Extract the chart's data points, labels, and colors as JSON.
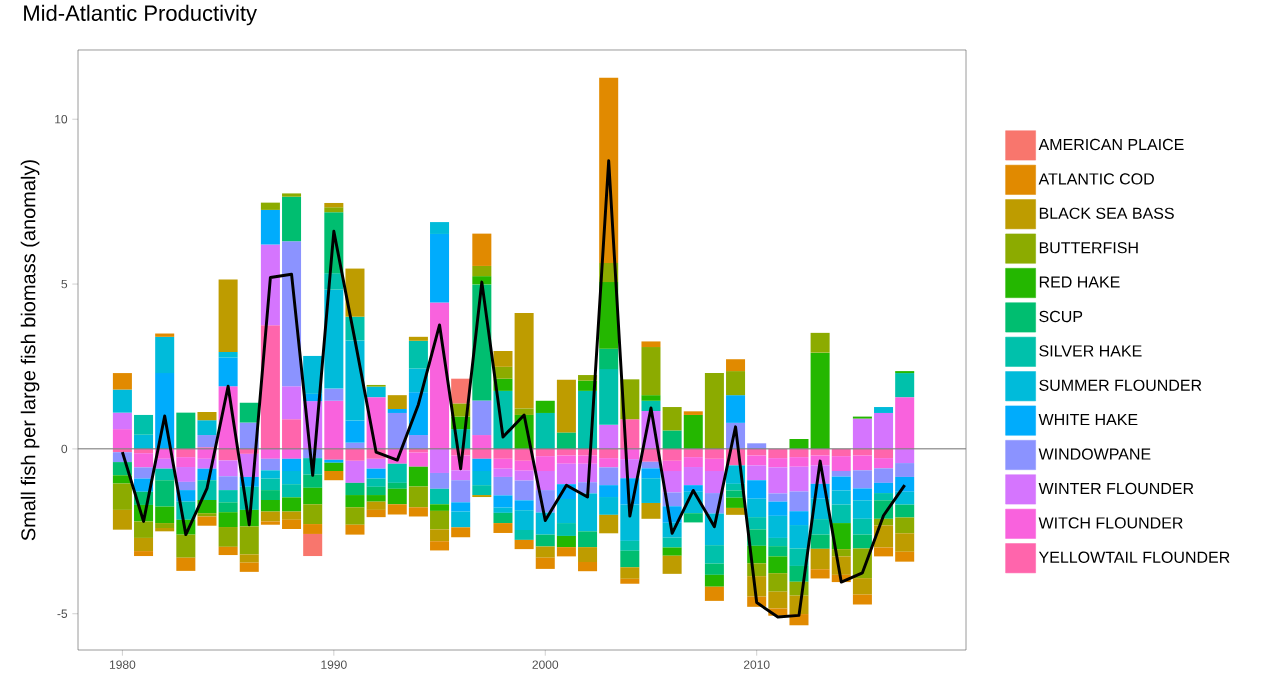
{
  "chart_data": {
    "type": "bar",
    "title": "Mid-Atlantic Productivity",
    "ylabel": "Small fish per large fish biomass (anomaly)",
    "x": [
      1980,
      1981,
      1982,
      1983,
      1984,
      1985,
      1986,
      1987,
      1988,
      1989,
      1990,
      1991,
      1992,
      1993,
      1994,
      1995,
      1996,
      1997,
      1998,
      1999,
      2000,
      2001,
      2002,
      2003,
      2004,
      2005,
      2006,
      2007,
      2008,
      2009,
      2010,
      2011,
      2012,
      2013,
      2014,
      2015,
      2016,
      2017
    ],
    "xlim": [
      1977.9,
      2019.9
    ],
    "ylim": [
      -6.1,
      12.1
    ],
    "xticks": [
      1980,
      1990,
      2000,
      2010
    ],
    "yticks": [
      -5,
      0,
      5,
      10
    ],
    "stacked": true,
    "legend": "right",
    "ref_lines": [
      {
        "axis": "y",
        "value": 0,
        "color": "#7f7f7f"
      }
    ],
    "series": [
      {
        "name": "YELLOWTAIL FLOUNDER",
        "color": "#FF65AC",
        "values": [
          -0.1,
          -0.13,
          null,
          -0.25,
          0.05,
          -0.35,
          -0.15,
          3.75,
          0.9,
          null,
          -0.33,
          -0.36,
          -0.3,
          null,
          -0.11,
          null,
          -0.2,
          -0.3,
          -0.3,
          -0.36,
          -0.22,
          -0.2,
          -0.2,
          -0.28,
          0.9,
          -0.39,
          -0.36,
          -0.25,
          -0.3,
          -0.5,
          -0.2,
          -0.28,
          -0.25,
          -0.2,
          -0.22,
          -0.2,
          -0.28,
          null
        ]
      },
      {
        "name": "WITCH FLOUNDER",
        "color": "#F962DD",
        "values": [
          0.6,
          -0.43,
          -0.3,
          -0.3,
          -0.3,
          1.9,
          null,
          -0.3,
          -0.3,
          null,
          1.46,
          null,
          1.57,
          -0.45,
          -0.43,
          4.44,
          -0.45,
          0.42,
          -0.3,
          -0.3,
          -0.45,
          -0.25,
          -0.25,
          -0.28,
          -0.31,
          null,
          -0.31,
          -0.3,
          -0.37,
          null,
          -0.3,
          -0.28,
          -0.29,
          -0.3,
          -0.45,
          -0.45,
          -0.31,
          1.57
        ]
      },
      {
        "name": "WINTER FLOUNDER",
        "color": "#D575FE",
        "values": [
          0.5,
          null,
          -0.3,
          -0.45,
          -0.3,
          -0.48,
          -0.7,
          2.45,
          1.0,
          1.45,
          null,
          -0.67,
          -0.3,
          null,
          null,
          -0.73,
          -0.3,
          null,
          -0.25,
          -0.3,
          -0.58,
          -0.62,
          -0.56,
          0.73,
          -0.58,
          1.15,
          -0.65,
          -0.55,
          -0.67,
          null,
          -0.45,
          -0.79,
          -0.75,
          -0.56,
          null,
          0.92,
          1.09,
          -0.43
        ]
      },
      {
        "name": "WINDOWPANE",
        "color": "#8B93FF",
        "values": [
          -0.3,
          -0.34,
          null,
          -0.25,
          0.37,
          -0.42,
          0.8,
          -0.35,
          4.4,
          -0.28,
          0.37,
          0.19,
          null,
          1.09,
          0.42,
          -0.48,
          -0.67,
          1.05,
          -0.56,
          -0.6,
          -0.68,
          null,
          -0.34,
          -0.54,
          null,
          -0.2,
          -0.42,
          null,
          -0.62,
          0.79,
          0.17,
          -0.25,
          -0.6,
          null,
          -0.17,
          -0.55,
          -0.44,
          -0.42
        ]
      },
      {
        "name": "WHITE HAKE",
        "color": "#00ACFC",
        "values": [
          null,
          -0.4,
          2.3,
          -0.35,
          -0.35,
          0.87,
          -0.3,
          1.05,
          -0.37,
          0.22,
          -0.09,
          0.67,
          -0.3,
          0.12,
          1.3,
          2.08,
          -0.28,
          -0.37,
          -0.37,
          -0.3,
          null,
          -0.45,
          null,
          -0.36,
          -0.8,
          -0.3,
          -0.5,
          -0.2,
          null,
          0.84,
          -0.56,
          -0.43,
          -0.42,
          -0.45,
          -0.42,
          -0.36,
          -0.31,
          -0.45
        ]
      },
      {
        "name": "SUMMER FLOUNDER",
        "color": "#00BBDA",
        "values": [
          0.7,
          0.43,
          1.1,
          null,
          0.45,
          0.17,
          null,
          -0.25,
          -0.4,
          1.15,
          3.0,
          2.43,
          0.32,
          null,
          0.72,
          0.36,
          -0.48,
          -0.43,
          -0.16,
          -0.6,
          -0.67,
          -0.73,
          -1.15,
          -0.54,
          -1.1,
          -0.75,
          -0.45,
          -0.65,
          -0.96,
          -0.56,
          -0.56,
          -0.67,
          -0.71,
          -0.62,
          -0.43,
          -0.56,
          0.18,
          -0.39
        ]
      },
      {
        "name": "SILVER HAKE",
        "color": "#00C1AB",
        "values": [
          null,
          0.6,
          -0.35,
          -0.55,
          -0.6,
          -0.37,
          -0.7,
          -0.35,
          -0.4,
          -0.5,
          0.5,
          0.72,
          -0.25,
          -0.58,
          0.84,
          -0.47,
          0.6,
          -0.3,
          1.76,
          -0.3,
          1.09,
          -0.39,
          1.76,
          1.69,
          -0.3,
          0.31,
          -0.3,
          null,
          -0.56,
          -0.2,
          -0.37,
          -0.25,
          -0.53,
          -0.47,
          -0.56,
          -0.48,
          -0.22,
          0.73
        ]
      },
      {
        "name": "SCUP",
        "color": "#00BE70",
        "values": [
          -0.4,
          -0.4,
          -0.8,
          1.1,
          null,
          -0.3,
          0.6,
          -0.3,
          1.35,
          -0.4,
          1.85,
          -0.37,
          -0.25,
          -0.18,
          null,
          null,
          null,
          3.52,
          -0.31,
          null,
          -0.36,
          0.5,
          -0.48,
          0.62,
          -0.5,
          null,
          0.56,
          -0.28,
          -0.34,
          -0.22,
          -0.5,
          -0.31,
          -0.48,
          -0.43,
          null,
          -0.42,
          -0.56,
          -0.39
        ]
      },
      {
        "name": "RED HAKE",
        "color": "#24B700",
        "values": [
          -0.25,
          -0.5,
          -0.5,
          -0.45,
          -0.4,
          -0.45,
          -0.5,
          -0.35,
          -0.43,
          -0.5,
          -0.25,
          -0.37,
          -0.2,
          -0.47,
          -0.6,
          -0.2,
          0.38,
          0.25,
          0.37,
          1.03,
          0.37,
          -0.34,
          0.31,
          2.02,
          null,
          0.17,
          -0.25,
          1.03,
          -0.36,
          -0.31,
          -0.53,
          -0.51,
          0.3,
          2.92,
          -0.79,
          0.06,
          null,
          0.06
        ]
      },
      {
        "name": "BUTTERFISH",
        "color": "#8CAB00",
        "values": [
          -0.8,
          -0.5,
          -0.15,
          -0.7,
          -0.1,
          -0.6,
          -0.85,
          0.22,
          0.1,
          -0.6,
          0.15,
          -0.53,
          0.05,
          null,
          -0.63,
          -0.56,
          0.4,
          0.31,
          0.36,
          0.2,
          null,
          null,
          0.17,
          0.58,
          1.21,
          1.46,
          0.71,
          null,
          2.3,
          0.73,
          -0.39,
          -0.56,
          -0.42,
          0.6,
          -0.22,
          -0.9,
          -0.2,
          -0.48
        ]
      },
      {
        "name": "BLACK SEA BASS",
        "color": "#BE9C00",
        "values": [
          -0.6,
          -0.4,
          -0.1,
          null,
          0.25,
          2.2,
          -0.25,
          -0.3,
          -0.25,
          null,
          0.13,
          1.46,
          -0.25,
          0.42,
          0.12,
          -0.36,
          null,
          -0.06,
          0.48,
          2.89,
          -0.34,
          1.6,
          -0.45,
          -0.56,
          -0.35,
          -0.48,
          -0.55,
          null,
          null,
          -0.21,
          -0.62,
          -0.51,
          -0.56,
          -0.62,
          -0.56,
          -0.5,
          -0.67,
          -0.56
        ]
      },
      {
        "name": "ATLANTIC COD",
        "color": "#E18A00",
        "values": [
          0.5,
          -0.15,
          0.1,
          -0.4,
          -0.28,
          -0.25,
          -0.28,
          -0.1,
          -0.28,
          -0.3,
          -0.28,
          -0.3,
          -0.22,
          -0.31,
          -0.28,
          -0.28,
          -0.3,
          0.98,
          -0.3,
          -0.28,
          -0.34,
          -0.28,
          -0.28,
          5.62,
          -0.15,
          0.17,
          null,
          0.11,
          -0.43,
          0.36,
          -0.31,
          -0.22,
          -0.34,
          -0.28,
          -0.22,
          -0.3,
          -0.27,
          -0.3
        ]
      },
      {
        "name": "AMERICAN PLAICE",
        "color": "#F8766D",
        "values": [
          null,
          null,
          null,
          null,
          null,
          null,
          null,
          null,
          null,
          -0.67,
          null,
          null,
          null,
          null,
          null,
          null,
          0.75,
          null,
          null,
          null,
          null,
          null,
          null,
          null,
          null,
          null,
          null,
          null,
          null,
          null,
          null,
          null,
          null,
          null,
          null,
          null,
          null,
          null
        ]
      },
      {
        "type": "line",
        "color": "#000000",
        "values": [
          -0.1,
          -2.2,
          1.0,
          -2.6,
          -1.2,
          1.9,
          -2.3,
          5.2,
          5.3,
          -0.8,
          6.6,
          3.3,
          -0.1,
          -0.34,
          1.35,
          3.76,
          -0.6,
          5.06,
          0.36,
          1.03,
          -2.17,
          -1.1,
          -1.46,
          8.74,
          -2.04,
          1.24,
          -2.56,
          -1.26,
          -2.36,
          0.67,
          -4.66,
          -5.1,
          -5.05,
          -0.37,
          -4.04,
          -3.76,
          -2.02,
          -1.1
        ]
      }
    ]
  }
}
